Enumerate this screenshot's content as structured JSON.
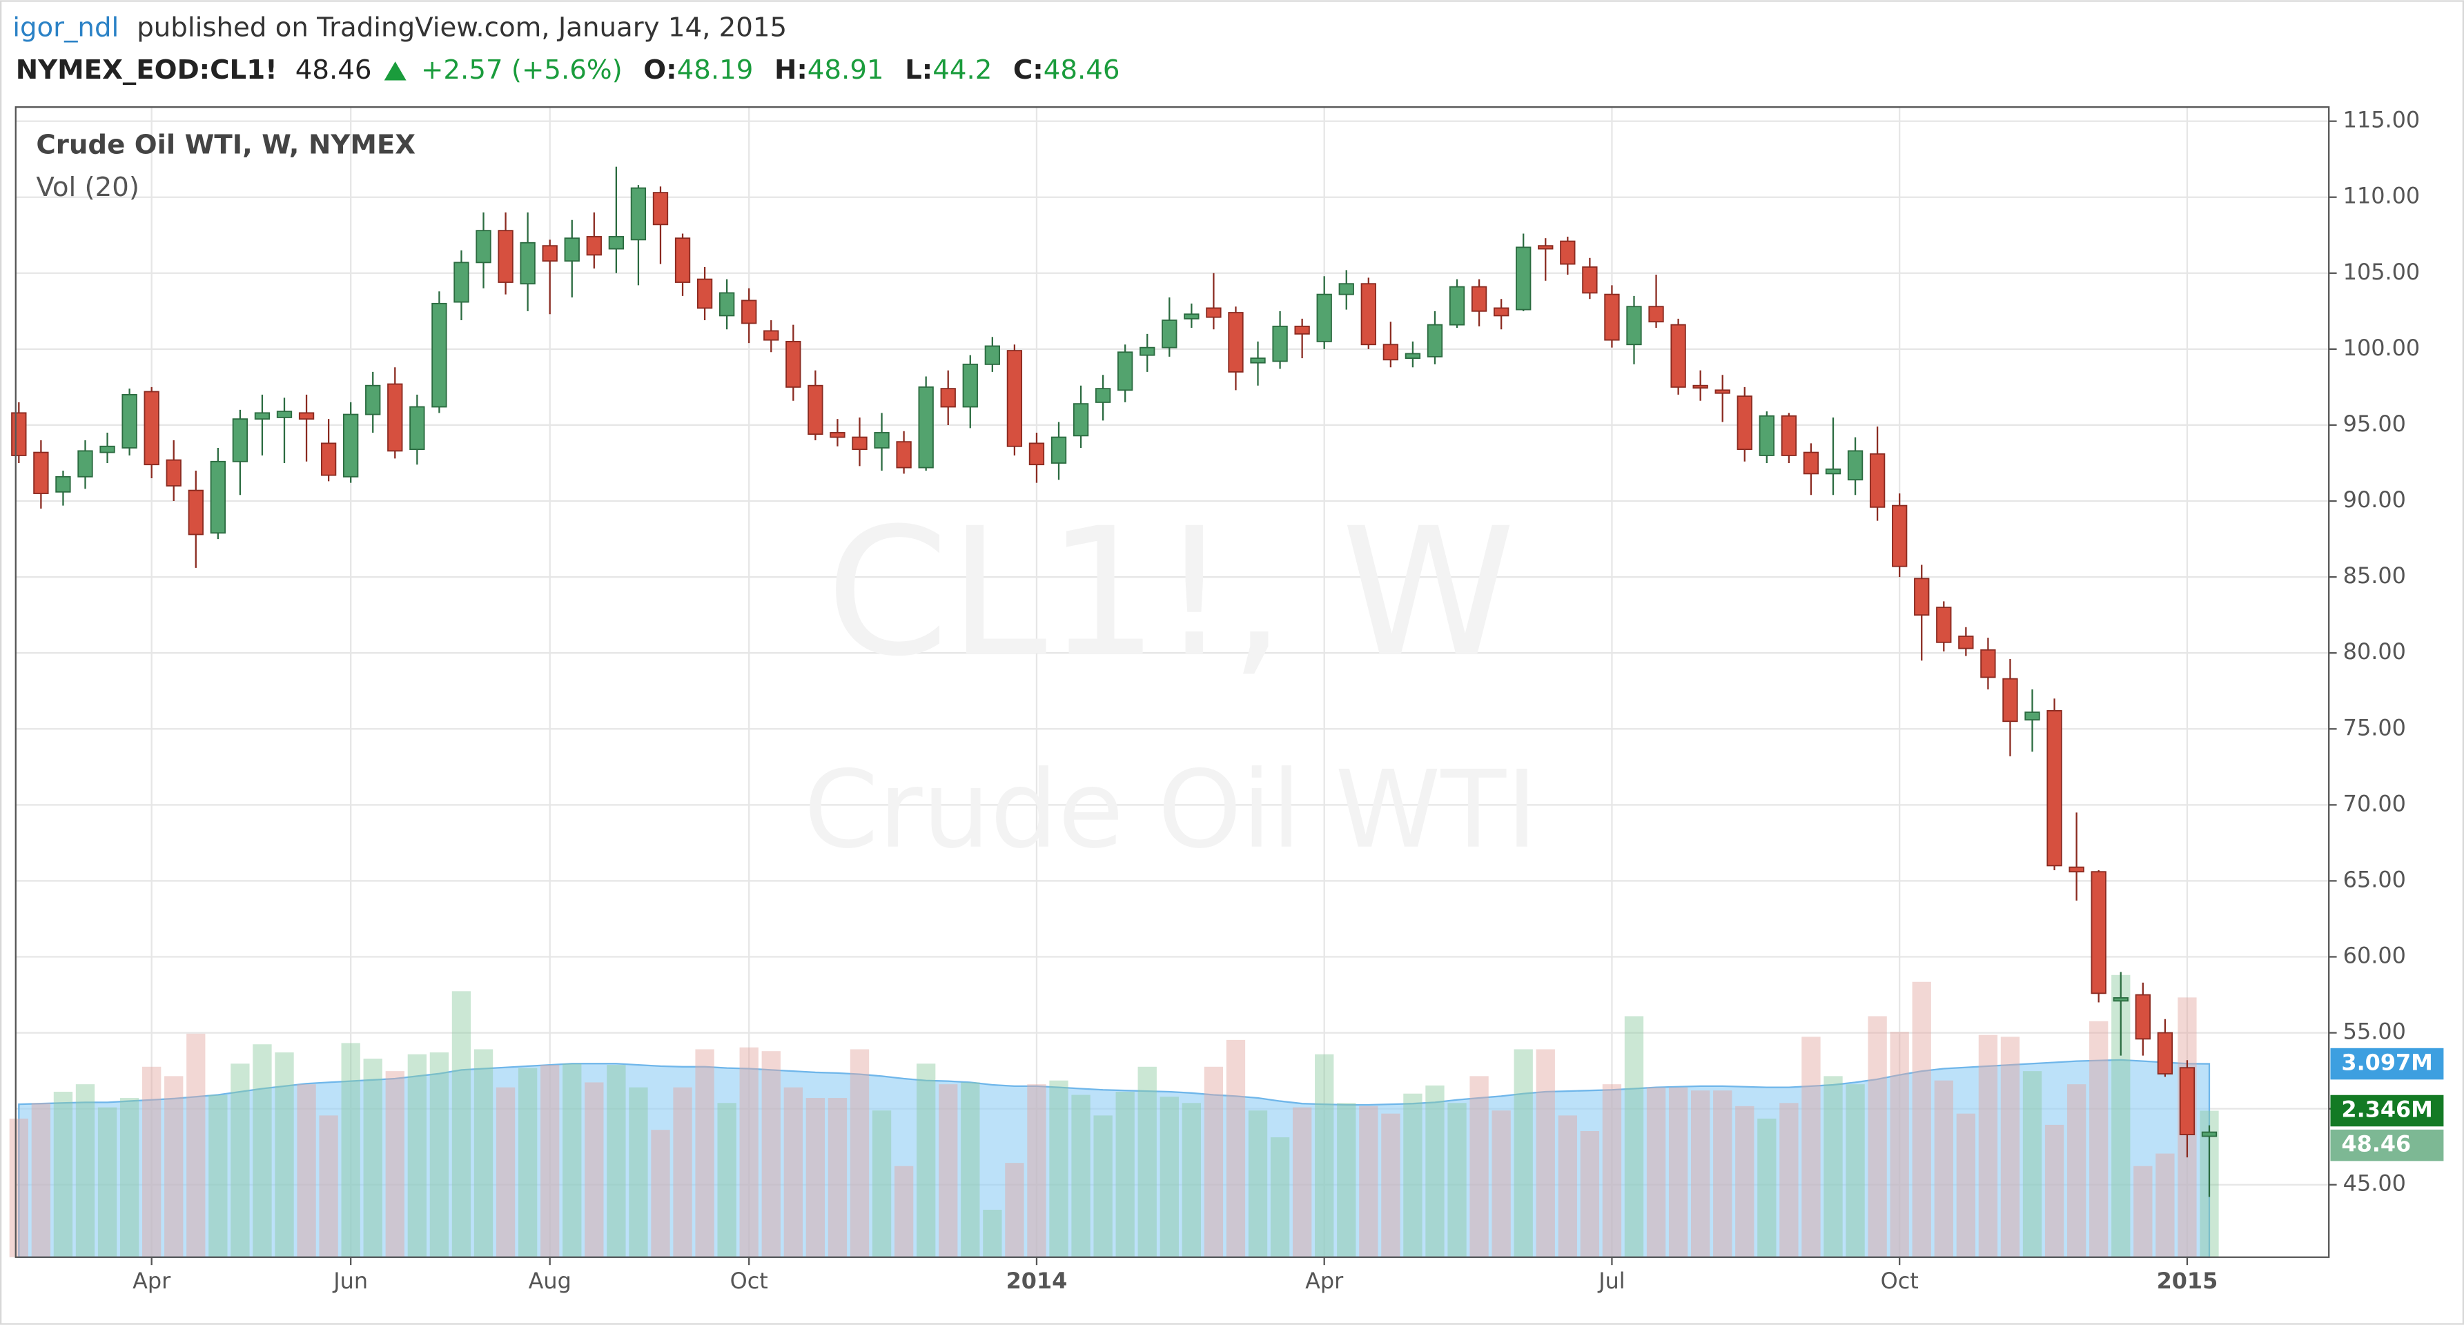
{
  "header": {
    "author": "igor_ndl",
    "published": "published on TradingView.com, January 14, 2015",
    "symbol": "NYMEX_EOD:CL1!",
    "last": 48.46,
    "change": "+2.57 (+5.6%)",
    "ohlc": [
      {
        "label": "O:",
        "value": 48.19
      },
      {
        "label": "H:",
        "value": 48.91
      },
      {
        "label": "L:",
        "value": 44.2
      },
      {
        "label": "C:",
        "value": 48.46
      }
    ]
  },
  "chart_data": {
    "type": "candlestick",
    "title": "Crude Oil WTI, W, NYMEX",
    "watermark": "CL1!, W",
    "watermark_subtitle": "Crude Oil WTI",
    "categories": [
      null,
      null,
      null,
      null,
      null,
      null,
      "Apr",
      null,
      null,
      null,
      null,
      null,
      null,
      null,
      null,
      "Jun",
      null,
      null,
      null,
      null,
      null,
      null,
      null,
      null,
      "Aug",
      null,
      null,
      null,
      null,
      null,
      null,
      null,
      null,
      "Oct",
      null,
      null,
      null,
      null,
      null,
      null,
      null,
      null,
      null,
      null,
      null,
      null,
      "2014",
      null,
      null,
      null,
      null,
      null,
      null,
      null,
      null,
      null,
      null,
      null,
      null,
      "Apr",
      null,
      null,
      null,
      null,
      null,
      null,
      null,
      null,
      null,
      null,
      null,
      null,
      "Jul",
      null,
      null,
      null,
      null,
      null,
      null,
      null,
      null,
      null,
      null,
      null,
      null,
      "Oct",
      null,
      null,
      null,
      null,
      null,
      null,
      null,
      null,
      null,
      null,
      null,
      null,
      "2015",
      null
    ],
    "open": [
      95.8,
      93.2,
      90.6,
      91.6,
      93.2,
      93.5,
      97.2,
      92.7,
      90.7,
      87.9,
      92.6,
      95.4,
      95.5,
      95.8,
      93.8,
      91.6,
      95.7,
      97.7,
      93.4,
      96.2,
      103.1,
      105.7,
      107.8,
      104.3,
      106.8,
      105.8,
      107.4,
      106.6,
      107.2,
      110.3,
      107.3,
      104.6,
      102.2,
      103.2,
      101.2,
      100.5,
      97.6,
      94.5,
      94.2,
      93.5,
      93.9,
      92.2,
      97.4,
      96.2,
      99,
      99.9,
      93.8,
      92.5,
      94.3,
      96.5,
      97.3,
      99.6,
      100.1,
      102,
      102.7,
      102.4,
      99.1,
      99.2,
      101.5,
      100.5,
      103.6,
      104.3,
      100.3,
      99.4,
      99.5,
      101.6,
      104.1,
      102.7,
      102.6,
      106.8,
      107.1,
      105.4,
      103.6,
      100.3,
      102.8,
      101.6,
      97.6,
      97.3,
      96.9,
      93,
      95.6,
      93.2,
      91.8,
      91.4,
      93.1,
      89.7,
      84.9,
      83,
      81.1,
      80.2,
      78.3,
      75.6,
      76.2,
      65.9,
      65.6,
      57.1,
      57.5,
      55,
      52.7,
      48.19
    ],
    "high": [
      96.5,
      94,
      92,
      94,
      94.5,
      97.4,
      97.5,
      94,
      92,
      93.5,
      96,
      97,
      96.8,
      97,
      95.4,
      96.5,
      98.5,
      98.8,
      97,
      103.8,
      106.5,
      109,
      109,
      109,
      107.2,
      108.5,
      109,
      112,
      110.8,
      110.7,
      107.6,
      105.4,
      104.6,
      104,
      101.9,
      101.6,
      98.6,
      95.4,
      95.5,
      95.8,
      94.6,
      98.2,
      98.6,
      99.6,
      100.8,
      100.3,
      94.5,
      95.2,
      97.6,
      98.3,
      100.3,
      101,
      103.4,
      103,
      105,
      102.8,
      100.5,
      102.5,
      102,
      104.8,
      105.2,
      104.7,
      101.8,
      100.5,
      102.5,
      104.6,
      104.6,
      103.3,
      107.6,
      107.3,
      107.4,
      106,
      104.2,
      103.5,
      104.9,
      102,
      98.6,
      98.3,
      97.5,
      95.9,
      95.8,
      93.8,
      95.5,
      94.2,
      94.9,
      90.5,
      85.8,
      83.4,
      81.7,
      81,
      79.6,
      77.6,
      77,
      69.5,
      65.7,
      59,
      58.3,
      55.9,
      53.2,
      48.91
    ],
    "low": [
      92.5,
      89.5,
      89.7,
      90.8,
      92.5,
      93,
      91.5,
      90,
      85.6,
      87.5,
      90.4,
      93,
      92.5,
      92.6,
      91.3,
      91.2,
      94.5,
      92.8,
      92.4,
      95.8,
      101.9,
      104,
      103.6,
      102.5,
      102.3,
      103.4,
      105.3,
      105,
      104.2,
      105.6,
      103.5,
      101.9,
      101.3,
      100.4,
      99.8,
      96.6,
      94,
      93.6,
      92.3,
      92,
      91.8,
      92,
      95,
      94.8,
      98.5,
      93,
      91.2,
      91.4,
      93.5,
      95.3,
      96.5,
      98.5,
      99.5,
      101.4,
      101.3,
      97.3,
      97.6,
      98.7,
      99.4,
      100,
      102.6,
      100,
      98.8,
      98.8,
      99,
      101.4,
      101.5,
      101.3,
      102.5,
      104.5,
      104.9,
      103.3,
      100.1,
      99,
      101.4,
      97,
      96.6,
      95.2,
      92.6,
      92.5,
      92.5,
      90.4,
      90.4,
      90.4,
      88.7,
      85,
      79.5,
      80.1,
      79.8,
      77.6,
      73.2,
      73.5,
      65.7,
      63.7,
      57,
      53.5,
      53.5,
      52.1,
      46.8,
      44.2
    ],
    "close": [
      93,
      90.5,
      91.6,
      93.3,
      93.6,
      97,
      92.4,
      91,
      87.8,
      92.6,
      95.4,
      95.8,
      95.9,
      95.4,
      91.7,
      95.7,
      97.6,
      93.3,
      96.2,
      103,
      105.7,
      107.8,
      104.4,
      107,
      105.8,
      107.3,
      106.2,
      107.4,
      110.6,
      108.2,
      104.4,
      102.7,
      103.7,
      101.7,
      100.6,
      97.5,
      94.4,
      94.2,
      93.4,
      94.5,
      92.2,
      97.5,
      96.2,
      99,
      100.2,
      93.6,
      92.4,
      94.2,
      96.4,
      97.4,
      99.8,
      100.1,
      101.9,
      102.3,
      102.1,
      98.5,
      99.4,
      101.5,
      101,
      103.6,
      104.3,
      100.3,
      99.3,
      99.7,
      101.6,
      104.1,
      102.5,
      102.2,
      106.7,
      106.6,
      105.6,
      103.7,
      100.6,
      102.8,
      101.8,
      97.5,
      97.5,
      97.1,
      93.4,
      95.6,
      93,
      91.8,
      92.1,
      93.3,
      89.6,
      85.7,
      82.5,
      80.7,
      80.3,
      78.4,
      75.5,
      76.1,
      66,
      65.6,
      57.6,
      57.3,
      54.6,
      52.3,
      48.3,
      48.46
    ],
    "up_color": "#53a36e",
    "up_border": "#2b6b40",
    "down_color": "#d6503f",
    "down_border": "#8a2a20",
    "ylim": [
      40.23,
      115.93
    ],
    "yticks": [
      {
        "value": 45,
        "label": "45.00"
      },
      {
        "value": 50,
        "label": "50.00"
      },
      {
        "value": 55,
        "label": "55.00"
      },
      {
        "value": 60,
        "label": "60.00"
      },
      {
        "value": 65,
        "label": "65.00"
      },
      {
        "value": 70,
        "label": "70.00"
      },
      {
        "value": 75,
        "label": "75.00"
      },
      {
        "value": 80,
        "label": "80.00"
      },
      {
        "value": 85,
        "label": "85.00"
      },
      {
        "value": 90,
        "label": "90.00"
      },
      {
        "value": 95,
        "label": "95.00"
      },
      {
        "value": 100,
        "label": "100.00"
      },
      {
        "value": 105,
        "label": "105.00"
      },
      {
        "value": 110,
        "label": "110.00"
      },
      {
        "value": 115,
        "label": "115.00"
      }
    ],
    "grid": true,
    "volume": {
      "name": "Vol (20)",
      "ylim": [
        0,
        18.42
      ],
      "values": [
        2.22,
        2.47,
        2.65,
        2.77,
        2.4,
        2.55,
        3.05,
        2.9,
        3.58,
        2.6,
        3.1,
        3.41,
        3.28,
        2.77,
        2.27,
        3.43,
        3.18,
        2.98,
        3.25,
        3.28,
        4.26,
        3.33,
        2.72,
        3.03,
        3.08,
        3.1,
        2.8,
        3.08,
        2.72,
        2.04,
        2.72,
        3.33,
        2.47,
        3.36,
        3.3,
        2.72,
        2.55,
        2.55,
        3.33,
        2.35,
        1.46,
        3.1,
        2.77,
        2.8,
        0.76,
        1.51,
        2.77,
        2.83,
        2.6,
        2.27,
        2.65,
        3.05,
        2.57,
        2.47,
        3.05,
        3.48,
        2.35,
        1.92,
        2.4,
        3.25,
        2.47,
        2.42,
        2.3,
        2.62,
        2.75,
        2.47,
        2.9,
        2.35,
        3.33,
        3.33,
        2.27,
        2.02,
        2.77,
        3.86,
        2.72,
        2.72,
        2.67,
        2.67,
        2.42,
        2.22,
        2.47,
        3.53,
        2.9,
        2.77,
        3.86,
        3.61,
        4.41,
        2.83,
        2.3,
        3.56,
        3.53,
        2.98,
        2.12,
        2.77,
        3.78,
        4.52,
        1.46,
        1.66,
        4.16,
        2.346
      ],
      "ma": [
        2.45,
        2.46,
        2.47,
        2.48,
        2.48,
        2.5,
        2.52,
        2.54,
        2.57,
        2.6,
        2.65,
        2.7,
        2.74,
        2.78,
        2.8,
        2.82,
        2.84,
        2.86,
        2.9,
        2.94,
        3.0,
        3.02,
        3.04,
        3.06,
        3.08,
        3.1,
        3.1,
        3.1,
        3.08,
        3.06,
        3.05,
        3.05,
        3.03,
        3.02,
        3.0,
        2.98,
        2.96,
        2.95,
        2.93,
        2.9,
        2.86,
        2.83,
        2.82,
        2.8,
        2.76,
        2.74,
        2.74,
        2.72,
        2.7,
        2.68,
        2.67,
        2.66,
        2.65,
        2.63,
        2.6,
        2.58,
        2.55,
        2.5,
        2.46,
        2.45,
        2.44,
        2.44,
        2.45,
        2.46,
        2.48,
        2.52,
        2.55,
        2.58,
        2.62,
        2.65,
        2.66,
        2.67,
        2.68,
        2.7,
        2.72,
        2.73,
        2.74,
        2.74,
        2.73,
        2.72,
        2.72,
        2.74,
        2.76,
        2.8,
        2.85,
        2.92,
        2.98,
        3.02,
        3.04,
        3.06,
        3.08,
        3.1,
        3.12,
        3.14,
        3.15,
        3.16,
        3.14,
        3.12,
        3.1,
        3.097
      ],
      "up_color": "#8cc9a0",
      "down_color": "#e2a6a0",
      "ma_color": "#8fcdf5",
      "ma_line": "#6fb6ea"
    },
    "axis_labels": [
      {
        "value": 3.097,
        "label": "3.097M",
        "axis": "volume",
        "color": "#3d9fe0"
      },
      {
        "value": 2.346,
        "label": "2.346M",
        "axis": "volume",
        "color": "#137a24"
      },
      {
        "value": 48.46,
        "label": "48.46",
        "axis": "price",
        "color": "#7db894"
      }
    ]
  }
}
